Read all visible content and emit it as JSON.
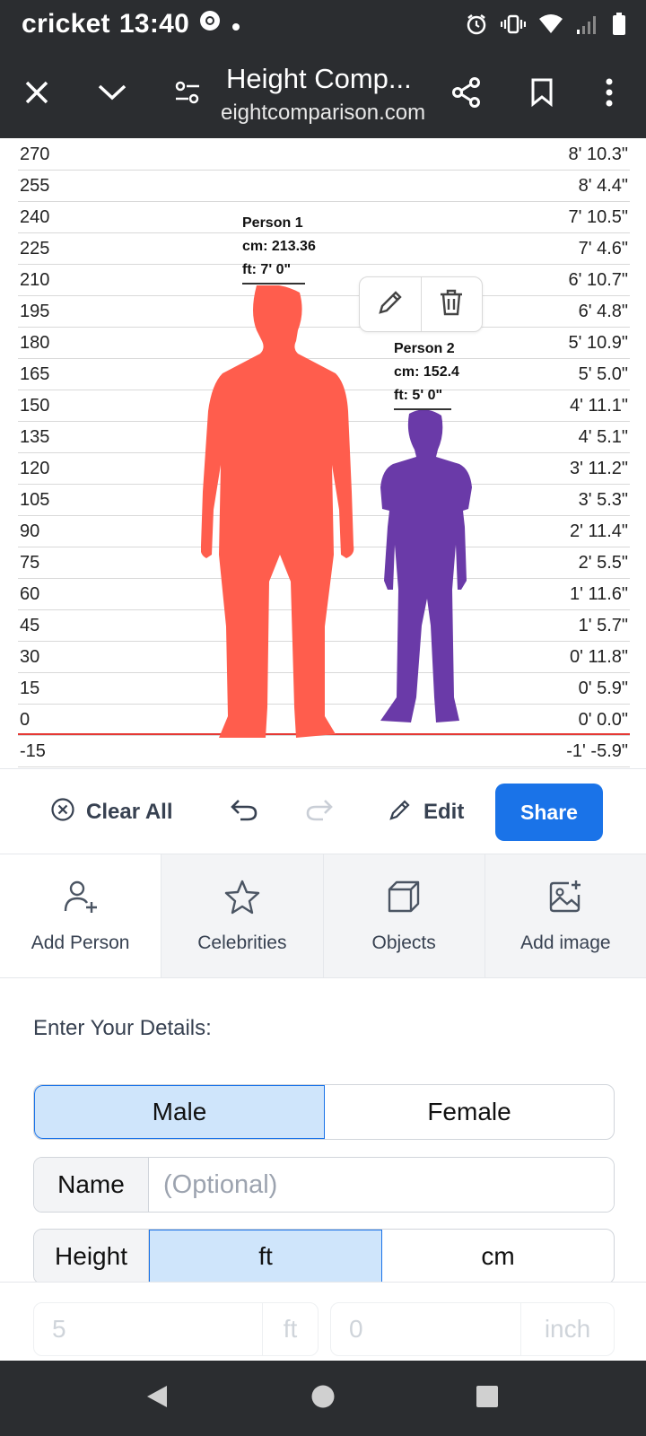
{
  "status_bar": {
    "carrier": "cricket",
    "time": "13:40"
  },
  "browser": {
    "title": "Height Comp...",
    "url": "eightcomparison.com"
  },
  "chart": {
    "rows": [
      {
        "cm": "270",
        "ft": "8' 10.3\""
      },
      {
        "cm": "255",
        "ft": "8' 4.4\""
      },
      {
        "cm": "240",
        "ft": "7' 10.5\""
      },
      {
        "cm": "225",
        "ft": "7' 4.6\""
      },
      {
        "cm": "210",
        "ft": "6' 10.7\""
      },
      {
        "cm": "195",
        "ft": "6' 4.8\""
      },
      {
        "cm": "180",
        "ft": "5' 10.9\""
      },
      {
        "cm": "165",
        "ft": "5' 5.0\""
      },
      {
        "cm": "150",
        "ft": "4' 11.1\""
      },
      {
        "cm": "135",
        "ft": "4' 5.1\""
      },
      {
        "cm": "120",
        "ft": "3' 11.2\""
      },
      {
        "cm": "105",
        "ft": "3' 5.3\""
      },
      {
        "cm": "90",
        "ft": "2' 11.4\""
      },
      {
        "cm": "75",
        "ft": "2' 5.5\""
      },
      {
        "cm": "60",
        "ft": "1' 11.6\""
      },
      {
        "cm": "45",
        "ft": "1' 5.7\""
      },
      {
        "cm": "30",
        "ft": "0' 11.8\""
      },
      {
        "cm": "15",
        "ft": "0' 5.9\""
      },
      {
        "cm": "0",
        "ft": "0' 0.0\""
      },
      {
        "cm": "-15",
        "ft": "-1' -5.9\""
      }
    ],
    "persons": [
      {
        "name": "Person 1",
        "cm": "cm: 213.36",
        "ft": "ft: 7' 0\"",
        "color": "#ff5d4d"
      },
      {
        "name": "Person 2",
        "cm": "cm: 152.4",
        "ft": "ft: 5' 0\"",
        "color": "#6a3aa8"
      }
    ]
  },
  "actions": {
    "clear_all": "Clear All",
    "edit": "Edit",
    "share": "Share"
  },
  "tabs": [
    {
      "label": "Add Person",
      "icon": "add-person-icon"
    },
    {
      "label": "Celebrities",
      "icon": "star-icon"
    },
    {
      "label": "Objects",
      "icon": "cube-icon"
    },
    {
      "label": "Add image",
      "icon": "add-image-icon"
    }
  ],
  "form": {
    "title": "Enter Your Details:",
    "gender": {
      "male": "Male",
      "female": "Female",
      "selected": "Male"
    },
    "name_label": "Name",
    "name_placeholder": "(Optional)",
    "height_label": "Height",
    "unit_ft": "ft",
    "unit_cm": "cm",
    "height_ft_value": "5",
    "height_ft_unit": "ft",
    "height_in_value": "0",
    "height_in_unit": "inch"
  },
  "colors": {
    "accent": "#1a73e8",
    "ground": "#e53935",
    "person1": "#ff5d4d",
    "person2": "#6a3aa8"
  }
}
